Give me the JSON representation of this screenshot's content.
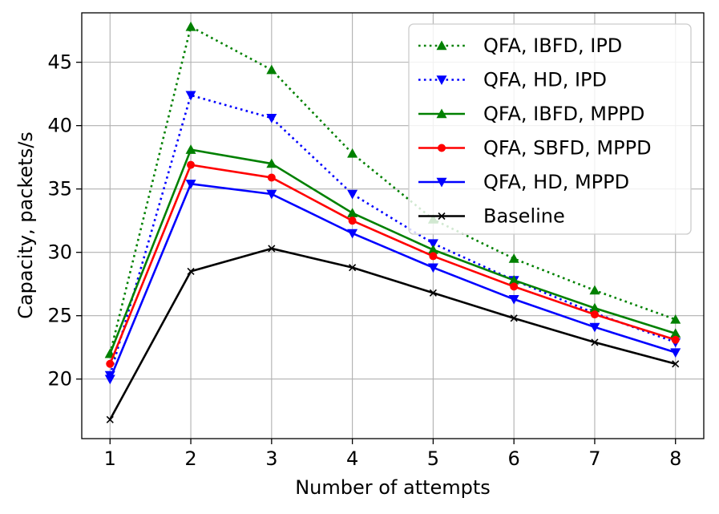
{
  "chart_data": {
    "type": "line",
    "title": "",
    "xlabel": "Number of attempts",
    "ylabel": "Capacity, packets/s",
    "x": [
      1,
      2,
      3,
      4,
      5,
      6,
      7,
      8
    ],
    "xticks": [
      "1",
      "2",
      "3",
      "4",
      "5",
      "6",
      "7",
      "8"
    ],
    "yticks": [
      20,
      25,
      30,
      35,
      40,
      45
    ],
    "xlim": [
      0.65,
      8.35
    ],
    "ylim": [
      15.3,
      48.9
    ],
    "grid": true,
    "legend_position": "top-right",
    "series": [
      {
        "name": "QFA, IBFD, IPD",
        "color": "#008000",
        "linestyle": "dotted",
        "marker": "triangle-up",
        "values": [
          22.0,
          47.8,
          44.4,
          37.8,
          32.6,
          29.5,
          27.0,
          24.7
        ]
      },
      {
        "name": "QFA, HD, IPD",
        "color": "#0000ff",
        "linestyle": "dotted",
        "marker": "triangle-down",
        "values": [
          20.3,
          42.4,
          40.6,
          34.6,
          30.7,
          27.8,
          25.2,
          22.9
        ]
      },
      {
        "name": "QFA, IBFD, MPPD",
        "color": "#008000",
        "linestyle": "solid",
        "marker": "triangle-up",
        "values": [
          22.0,
          38.1,
          37.0,
          33.1,
          30.2,
          27.8,
          25.6,
          23.6
        ]
      },
      {
        "name": "QFA, SBFD, MPPD",
        "color": "#ff0000",
        "linestyle": "solid",
        "marker": "circle",
        "values": [
          21.2,
          36.9,
          35.9,
          32.5,
          29.7,
          27.3,
          25.1,
          23.1
        ]
      },
      {
        "name": "QFA, HD, MPPD",
        "color": "#0000ff",
        "linestyle": "solid",
        "marker": "triangle-down",
        "values": [
          20.0,
          35.4,
          34.6,
          31.5,
          28.8,
          26.3,
          24.1,
          22.1
        ]
      },
      {
        "name": "Baseline",
        "color": "#000000",
        "linestyle": "solid",
        "marker": "x",
        "values": [
          16.8,
          28.5,
          30.3,
          28.8,
          26.8,
          24.8,
          22.9,
          21.2
        ]
      }
    ]
  }
}
